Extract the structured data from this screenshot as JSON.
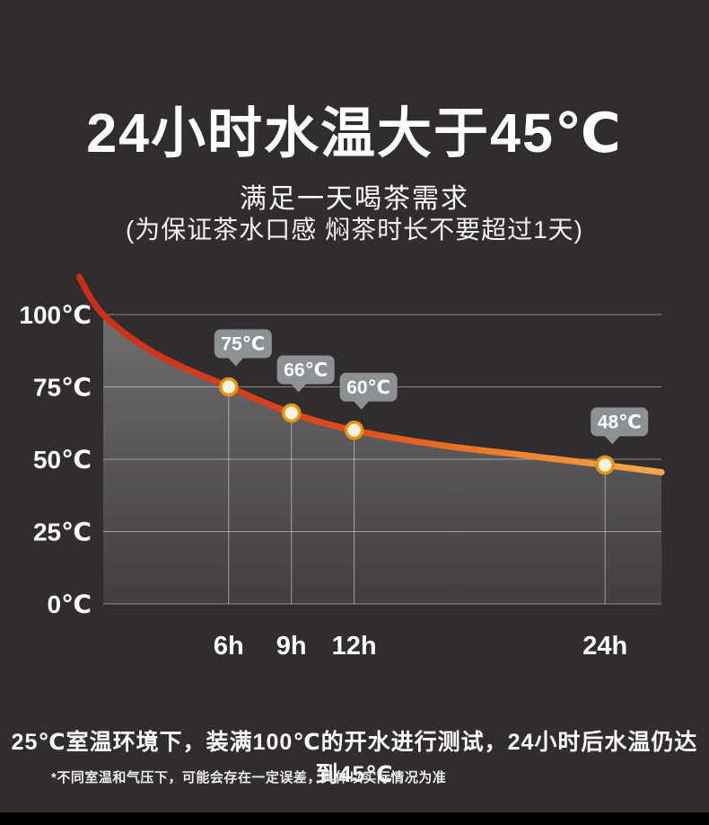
{
  "page": {
    "title": "24小时水温大于45℃",
    "subtitle": "满足一天喝茶需求",
    "subtitle_note": "(为保证茶水口感 焖茶时长不要超过1天)",
    "bottom_note": "25℃室温环境下，装满100℃的开水进行测试，24小时后水温仍达到45℃",
    "footnote": "*不同室温和气压下，可能会存在一定误差，具体以实际情况为准",
    "background_color": "#2f2d2d"
  },
  "chart_data": {
    "type": "line",
    "title": "",
    "xlabel": "",
    "ylabel": "",
    "x_unit": "h",
    "y_unit": "℃",
    "xlim": [
      0,
      26.7
    ],
    "ylim": [
      0,
      115
    ],
    "grid": true,
    "legend": false,
    "y_ticks": [
      0,
      25,
      50,
      75,
      100
    ],
    "y_tick_labels": [
      "0℃",
      "25℃",
      "50℃",
      "75℃",
      "100℃"
    ],
    "x_ticks": [
      6,
      9,
      12,
      24
    ],
    "x_tick_labels": [
      "6h",
      "9h",
      "12h",
      "24h"
    ],
    "series": [
      {
        "name": "水温",
        "x": [
          0,
          6,
          9,
          12,
          24
        ],
        "values": [
          100,
          75,
          66,
          60,
          48
        ]
      }
    ],
    "annotations": [
      {
        "x": 6,
        "y": 75,
        "label": "75℃"
      },
      {
        "x": 9,
        "y": 66,
        "label": "66℃"
      },
      {
        "x": 12,
        "y": 60,
        "label": "60℃"
      },
      {
        "x": 24,
        "y": 48,
        "label": "48℃"
      }
    ],
    "curve_shape_points": [
      [
        -1.15,
        113
      ],
      [
        0,
        100
      ],
      [
        2.5,
        86.5
      ],
      [
        6,
        75
      ],
      [
        9,
        66
      ],
      [
        12,
        60
      ],
      [
        16,
        55
      ],
      [
        20,
        51.5
      ],
      [
        24,
        48
      ],
      [
        26.7,
        45.5
      ]
    ],
    "colors": {
      "line_gradient": [
        {
          "offset": 0,
          "color": "#c92d1b"
        },
        {
          "offset": 0.45,
          "color": "#e0481f"
        },
        {
          "offset": 0.7,
          "color": "#ec7b28"
        },
        {
          "offset": 1,
          "color": "#f4a847"
        }
      ],
      "marker_fill": "#fbf3e0",
      "marker_ring": "#e8930f",
      "tooltip_bg": "#8f9094",
      "tooltip_text": "#ffffff",
      "grid_line": "rgba(255,255,255,0.45)",
      "drop_line": "rgba(235,235,235,0.55)",
      "area_top": "rgba(190,190,190,0.45)",
      "area_bottom": "rgba(190,190,190,0.12)",
      "axis_label": "#ffffff"
    }
  }
}
